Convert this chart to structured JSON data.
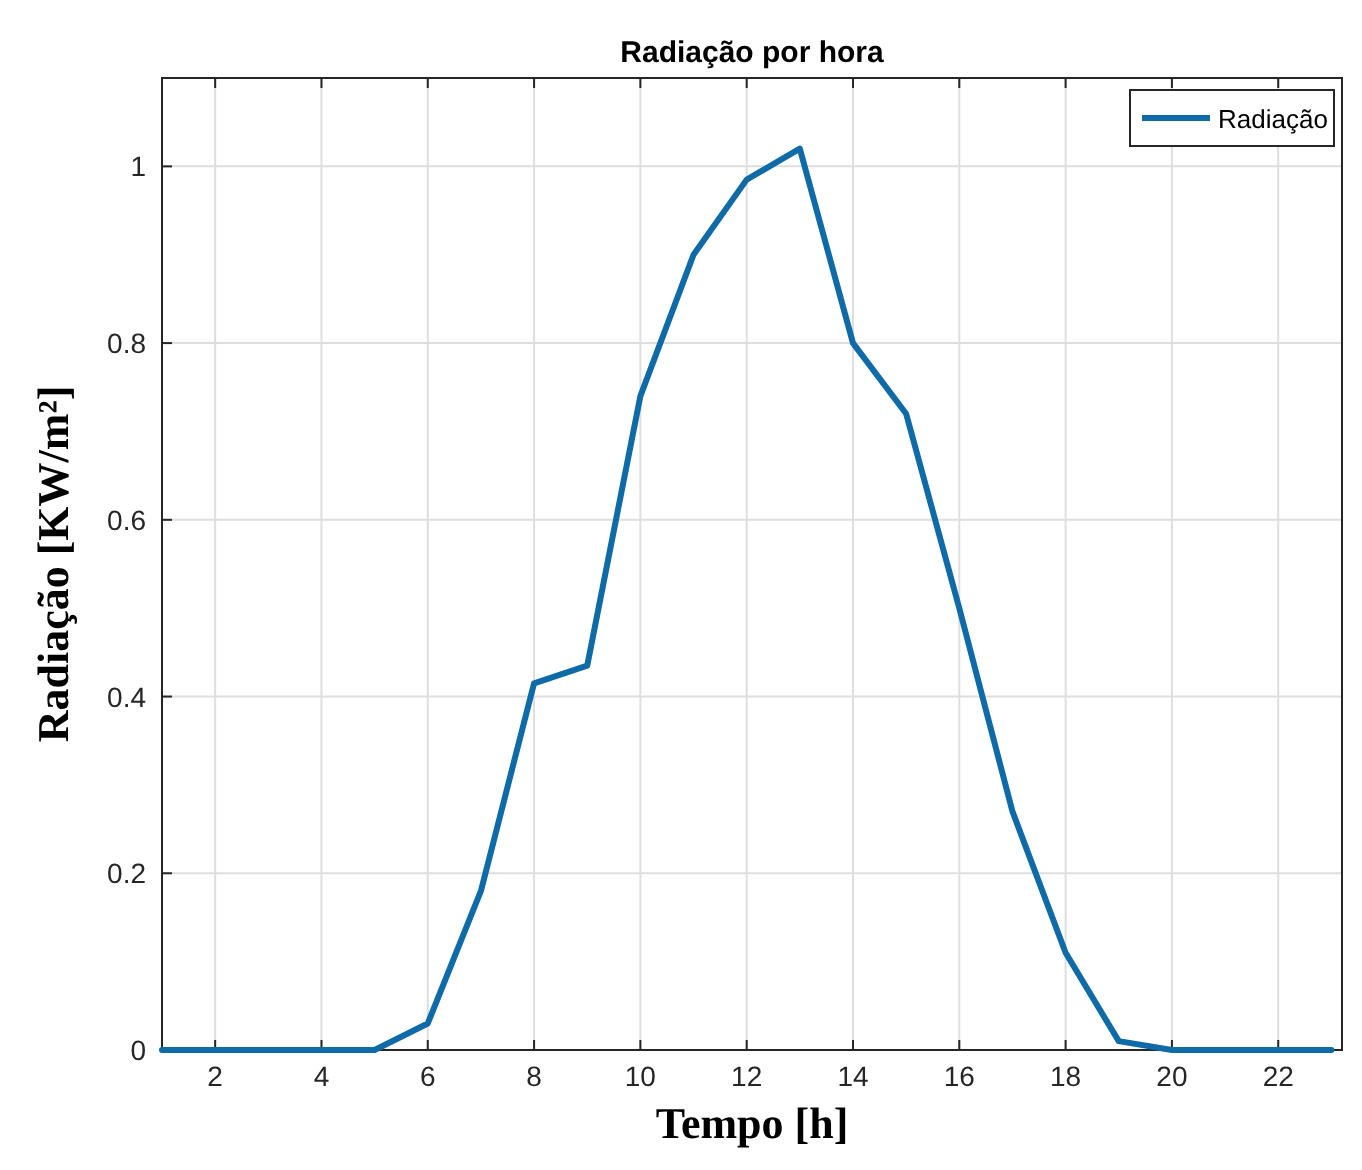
{
  "chart_data": {
    "type": "line",
    "title": "Radiação por hora",
    "xlabel": "Tempo [h]",
    "ylabel": "Radiação [KW/m²]",
    "x": [
      1,
      2,
      3,
      4,
      5,
      6,
      7,
      8,
      9,
      10,
      11,
      12,
      13,
      14,
      15,
      16,
      17,
      18,
      19,
      20,
      21,
      22,
      23
    ],
    "series": [
      {
        "name": "Radiação",
        "color": "#0f6aa8",
        "values": [
          0,
          0,
          0,
          0,
          0,
          0.03,
          0.18,
          0.415,
          0.435,
          0.74,
          0.9,
          0.985,
          1.02,
          0.8,
          0.72,
          0.5,
          0.27,
          0.11,
          0.01,
          0,
          0,
          0,
          0
        ]
      }
    ],
    "xlim": [
      1,
      23.2
    ],
    "xticks": [
      2,
      4,
      6,
      8,
      10,
      12,
      14,
      16,
      18,
      20,
      22
    ],
    "ylim": [
      0,
      1.1
    ],
    "yticks": [
      0,
      0.2,
      0.4,
      0.6,
      0.8,
      1
    ],
    "grid": true,
    "legend": "top right",
    "marker": "none",
    "line_style": "solid"
  }
}
